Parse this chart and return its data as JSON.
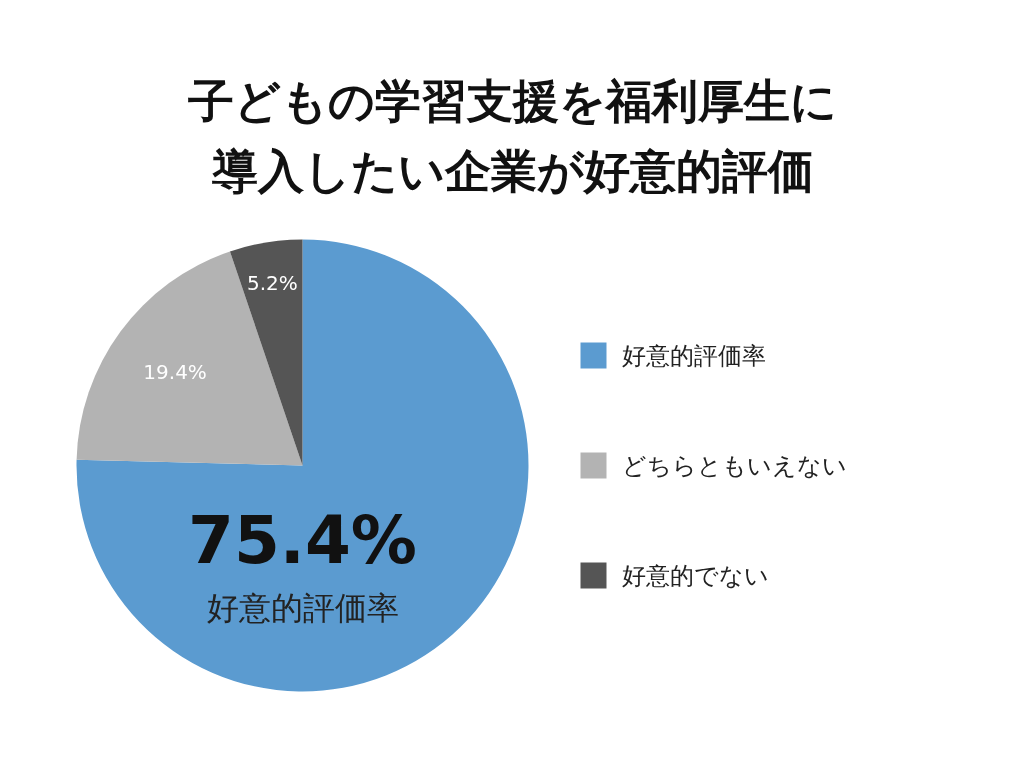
{
  "chart_data": {
    "type": "pie",
    "title": "子どもの学習支援を福利厚生に導入したい企業が好意的評価",
    "categories": [
      "好意的評価率",
      "どちらともいえない",
      "好意的でない"
    ],
    "values": [
      75.4,
      19.4,
      5.2
    ],
    "colors": [
      "#5b9bd0",
      "#b3b3b3",
      "#555555"
    ],
    "value_labels": [
      "75.4%",
      "19.4%",
      "5.2%"
    ],
    "legend": "right",
    "annotations": [
      "好意的評価率"
    ]
  }
}
